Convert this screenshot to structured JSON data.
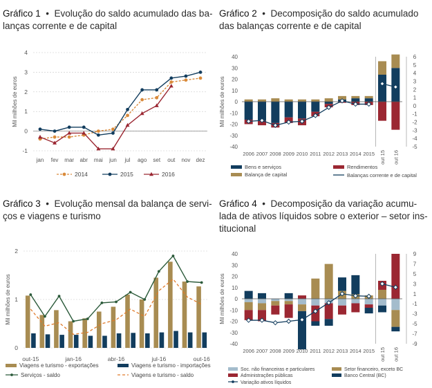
{
  "colors": {
    "orange": "#d98a3a",
    "navy": "#123d5e",
    "red": "#9b2732",
    "gold": "#a88c52",
    "lightblue": "#a4bccc",
    "darkgreen": "#2b5a3a",
    "grid": "#c8c8c8",
    "axis": "#888888"
  },
  "chart_data": [
    {
      "id": "g1",
      "type": "line",
      "title_num": "Gráfico 1",
      "title_bullet": "•",
      "title_text": "Evolução do saldo acumulado das balanças corrente e de capital",
      "title_line1": "Evolução do saldo acumulado das ba-",
      "title_line2": "lanças corrente e de capital",
      "ylabel": "Mil milhões de euros",
      "ylim": [
        -1,
        4
      ],
      "yticks": [
        "-1",
        "0",
        "1",
        "2",
        "3",
        "4"
      ],
      "categories": [
        "jan",
        "fev",
        "mar",
        "abr",
        "mai",
        "jun",
        "jul",
        "ago",
        "set",
        "out",
        "nov",
        "dez"
      ],
      "series": [
        {
          "name": "2014",
          "values": [
            -0.4,
            -0.3,
            -0.3,
            -0.2,
            0.0,
            0.1,
            0.8,
            1.6,
            1.7,
            2.5,
            2.6,
            2.7
          ]
        },
        {
          "name": "2015",
          "values": [
            0.1,
            0.0,
            0.2,
            0.2,
            -0.2,
            -0.1,
            1.1,
            2.1,
            2.1,
            2.7,
            2.8,
            3.0
          ]
        },
        {
          "name": "2016",
          "values": [
            -0.3,
            -0.6,
            -0.1,
            -0.1,
            -0.9,
            -0.9,
            0.3,
            0.9,
            1.3,
            2.3,
            null,
            null
          ]
        }
      ],
      "legend": [
        "2014",
        "2015",
        "2016"
      ]
    },
    {
      "id": "g2",
      "type": "bar",
      "title_num": "Gráfico 2",
      "title_bullet": "•",
      "title_text": "Decomposição do saldo acumulado das balanças corrente e de capital",
      "title_line1": "Decomposição do saldo acumulado",
      "title_line2": "das balanças corrente e de capital",
      "ylabel": "Mil milhões de euros",
      "ylim": [
        -40,
        40
      ],
      "yticks": [
        "-40",
        "-30",
        "-20",
        "-10",
        "0",
        "10",
        "20",
        "30",
        "40"
      ],
      "y2lim": [
        -5,
        6
      ],
      "y2ticks": [
        "-5",
        "-4",
        "-3",
        "-2",
        "-1",
        "0",
        "1",
        "2",
        "3",
        "4",
        "5",
        "6"
      ],
      "categories": [
        "2006",
        "2007",
        "2008",
        "2009",
        "2010",
        "2011",
        "2012",
        "2013",
        "2014",
        "2015",
        "out 15",
        "out 16"
      ],
      "series": [
        {
          "name": "Bens e serviços",
          "values": [
            -16,
            -17,
            -19,
            -14,
            -15,
            -9,
            -2,
            2,
            3,
            3,
            24,
            30
          ]
        },
        {
          "name": "Rendimentos",
          "values": [
            -4,
            -4,
            -4,
            -5,
            -6,
            -4,
            -3,
            -1,
            -3,
            -3,
            -17,
            -25
          ]
        },
        {
          "name": "Balança de capital",
          "values": [
            2,
            2,
            3,
            2,
            2,
            2,
            3,
            3,
            2,
            2,
            12,
            12
          ]
        },
        {
          "name": "Balanças corrente e de capital",
          "axis": "right",
          "values": [
            -1.9,
            -1.8,
            -2.4,
            -2.0,
            -1.9,
            -1.2,
            -0.2,
            0.6,
            0.2,
            0.2,
            2.7,
            2.3
          ]
        }
      ],
      "legend": [
        "Bens e serviços",
        "Rendimentos",
        "Balança de capital",
        "Balanças corrente e de capital"
      ]
    },
    {
      "id": "g3",
      "type": "bar",
      "title_num": "Gráfico 3",
      "title_bullet": "•",
      "title_text": "Evolução mensal da balança de serviços e viagens e turismo",
      "title_line1": "Evolução mensal da balança de servi-",
      "title_line2": "ços e viagens e turismo",
      "ylabel": "Mil milhões de euros",
      "ylim": [
        0,
        2
      ],
      "yticks": [
        "0",
        "1",
        "2"
      ],
      "xticks": [
        "out-15",
        "jan-16",
        "abr-16",
        "jul-16",
        "out-16"
      ],
      "months": 13,
      "series": [
        {
          "name": "Viagens e turismo - exportações",
          "values": [
            1.08,
            0.68,
            0.78,
            0.55,
            0.61,
            0.75,
            0.85,
            1.1,
            1.0,
            1.45,
            1.78,
            1.37,
            1.27
          ]
        },
        {
          "name": "Viagens e turismo - importações",
          "values": [
            0.3,
            0.28,
            0.27,
            0.27,
            0.25,
            0.25,
            0.3,
            0.31,
            0.3,
            0.32,
            0.35,
            0.32,
            0.32
          ]
        },
        {
          "name": "Serviços - saldo",
          "values": [
            1.1,
            0.65,
            1.07,
            0.55,
            0.6,
            0.93,
            0.95,
            1.15,
            1.0,
            1.58,
            1.9,
            1.37,
            1.35
          ]
        },
        {
          "name": "Viagens e turismo - saldo",
          "values": [
            0.8,
            0.45,
            0.52,
            0.28,
            0.32,
            0.5,
            0.58,
            0.8,
            0.65,
            1.18,
            1.42,
            1.05,
            0.9
          ]
        }
      ],
      "legend": [
        "Viagens e turismo - exportações",
        "Viagens e turismo - importações",
        "Serviços - saldo",
        "Viagens e turismo - saldo"
      ]
    },
    {
      "id": "g4",
      "type": "bar",
      "title_num": "Gráfico 4",
      "title_bullet": "•",
      "title_text": "Decomposição da variação acumulada de ativos líquidos sobre o exterior – setor institucional",
      "title_line1": "Decomposição da variação acumu-",
      "title_line2": "lada de ativos líquidos sobre o exterior – setor ins-",
      "title_line3": "titucional",
      "ylabel": "Mil milhões de euros",
      "ylim": [
        -40,
        40
      ],
      "yticks": [
        "-40",
        "-30",
        "-20",
        "-10",
        "0",
        "10",
        "20",
        "30",
        "40"
      ],
      "y2lim": [
        -9,
        9
      ],
      "y2ticks": [
        "-9",
        "-7",
        "-5",
        "-3",
        "-1",
        "1",
        "3",
        "5",
        "7",
        "9"
      ],
      "categories": [
        "2006",
        "2007",
        "2008",
        "2009",
        "2010",
        "2011",
        "2012",
        "2013",
        "2014",
        "2015",
        "out 15",
        "out 16"
      ],
      "series": [
        {
          "name": "Soc. não financeiras e particulares",
          "values": [
            -3,
            -4,
            -2,
            -2,
            -5,
            -6,
            -4,
            -6,
            -4,
            -5,
            -6,
            -10
          ]
        },
        {
          "name": "Setor financeiro, exceto BC",
          "values": [
            -7,
            -6,
            -4,
            -3,
            -6,
            18,
            31,
            7,
            4,
            3,
            8,
            -15
          ]
        },
        {
          "name": "Administrações públicas",
          "values": [
            -9,
            -10,
            -8,
            -12,
            3,
            -14,
            -14,
            -8,
            -8,
            -3,
            8,
            40
          ]
        },
        {
          "name": "Banco Central (BC)",
          "values": [
            7,
            5,
            0,
            5,
            -34,
            -4,
            -6,
            12,
            17,
            -5,
            -6,
            -4
          ]
        },
        {
          "name": "Variação ativos líquidos",
          "axis": "right",
          "values": [
            -4.3,
            -4.3,
            -4.8,
            -4.5,
            -4.2,
            -2.5,
            -0.8,
            1.0,
            0.6,
            0.5,
            3.0,
            2.3
          ]
        }
      ],
      "legend": [
        "Soc. não financeiras e particulares",
        "Setor financeiro, exceto BC",
        "Administrações públicas",
        "Banco Central (BC)",
        "Variação ativos líquidos"
      ]
    }
  ]
}
